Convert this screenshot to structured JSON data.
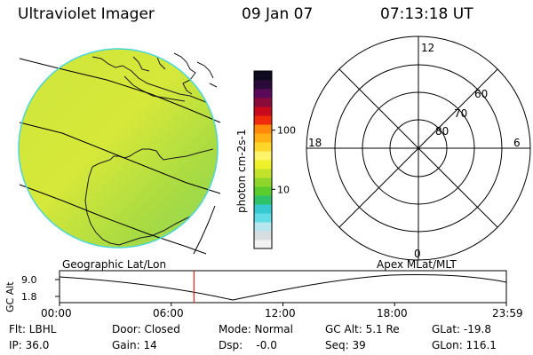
{
  "header": {
    "title": "Ultraviolet Imager",
    "date": "09 Jan 07",
    "time": "07:13:18 UT"
  },
  "colorbar": {
    "unit_label": "photon cm-2s-1",
    "ticks": [
      {
        "label": "100",
        "value": 100
      },
      {
        "label": "10",
        "value": 10
      }
    ],
    "colors": [
      "#f2f2f2",
      "#d8dde0",
      "#b8e6ef",
      "#62dde8",
      "#37c9d2",
      "#2fc16a",
      "#5acc2e",
      "#8fd62c",
      "#c3e22a",
      "#eef02a",
      "#fff36a",
      "#ffd62a",
      "#ffb014",
      "#ff8a0a",
      "#ef2a0a",
      "#c80a1a",
      "#8a0a3a",
      "#5a0a58",
      "#2a0a3a",
      "#100a20"
    ]
  },
  "polar": {
    "mlt_labels": [
      {
        "label": "12",
        "pos": "top"
      },
      {
        "label": "18",
        "pos": "left"
      },
      {
        "label": "6",
        "pos": "right"
      },
      {
        "label": "0",
        "pos": "bottom"
      }
    ],
    "lat_labels": [
      "60",
      "70",
      "80"
    ]
  },
  "timeline": {
    "left_caption": "Geographic Lat/Lon",
    "right_caption": "Apex MLat/MLT",
    "axis_label": "GC Alt",
    "y_max_label": "9.0",
    "y_min_label": "1.8",
    "x_ticks": [
      "00:00",
      "06:00",
      "12:00",
      "18:00",
      "23:59"
    ],
    "marker_time_hours": 7.22
  },
  "info": {
    "row1": [
      "Flt: LBHL",
      "Door: Closed",
      "Mode: Normal",
      "GC Alt: 5.1 Re",
      "GLat: -19.8"
    ],
    "row2": [
      "IP: 36.0",
      "Gain: 14",
      "Dsp:    -0.0",
      "Seq: 39",
      "GLon: 116.1"
    ]
  },
  "colors": {
    "marker": "#e0201a",
    "globe_base": "#c6e43a",
    "globe_edge": "#4ad7d9"
  }
}
